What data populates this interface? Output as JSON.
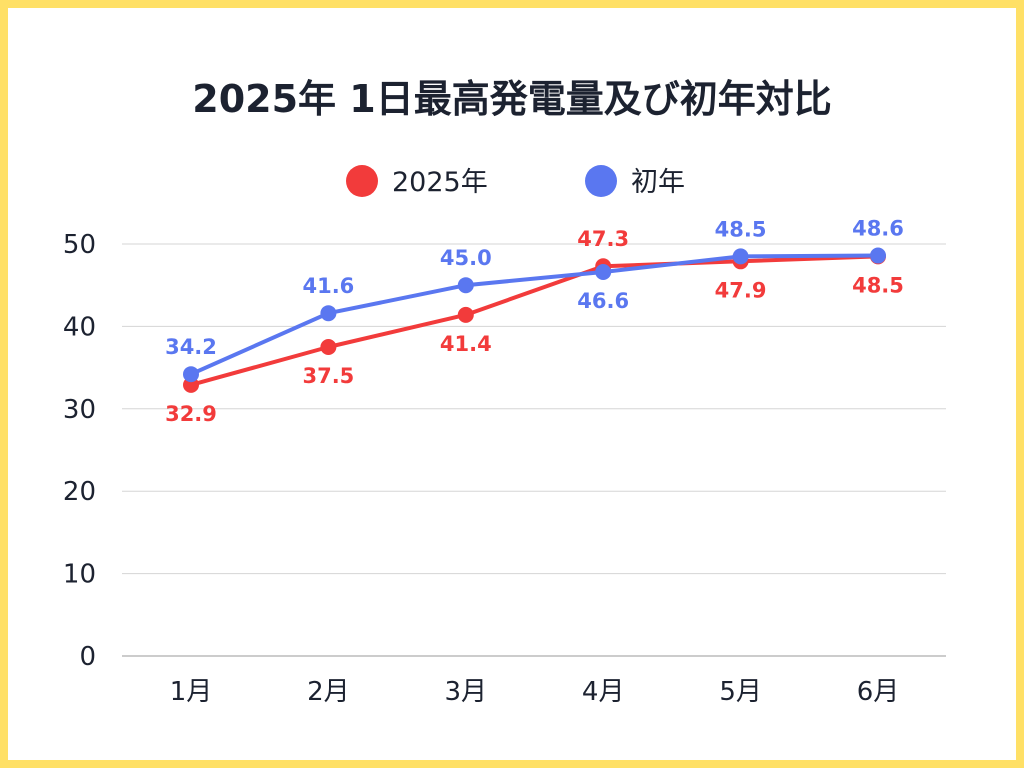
{
  "chart_data": {
    "type": "line",
    "title": "2025年 1日最高発電量及び初年対比",
    "categories": [
      "1月",
      "2月",
      "3月",
      "4月",
      "5月",
      "6月"
    ],
    "series": [
      {
        "name": "2025年",
        "color": "#f23b3b",
        "values": [
          32.9,
          37.5,
          41.4,
          47.3,
          47.9,
          48.5
        ]
      },
      {
        "name": "初年",
        "color": "#5a77f0",
        "values": [
          34.2,
          41.6,
          45.0,
          46.6,
          48.5,
          48.6
        ]
      }
    ],
    "ylim": [
      0,
      50
    ],
    "yticks": [
      0,
      10,
      20,
      30,
      40,
      50
    ],
    "grid": true,
    "legend": "top"
  },
  "colors": {
    "border": "#ffe066",
    "gridline": "#d5d5d5",
    "axis": "#999999",
    "text": "#1c2230"
  }
}
